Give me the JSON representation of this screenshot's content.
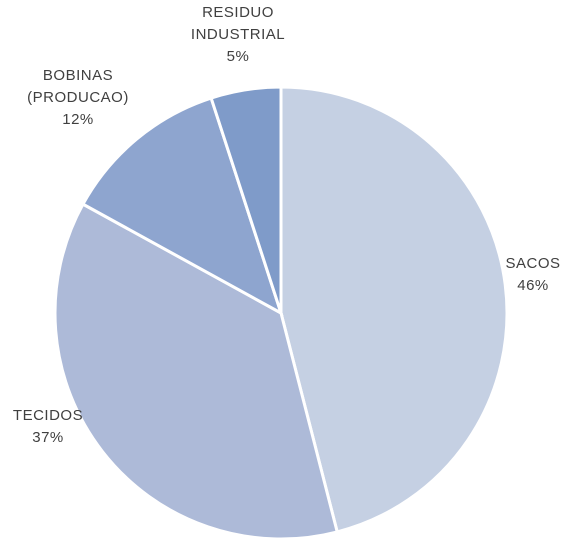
{
  "chart_data": {
    "type": "pie",
    "categories": [
      "SACOS",
      "TECIDOS",
      "BOBINAS (PRODUCAO)",
      "RESIDUO INDUSTRIAL"
    ],
    "values": [
      46,
      37,
      12,
      5
    ],
    "value_labels": [
      "46%",
      "37%",
      "12%",
      "5%"
    ],
    "colors": [
      "#c5d0e3",
      "#adbad8",
      "#8ea5cf",
      "#7f9bc9"
    ]
  }
}
